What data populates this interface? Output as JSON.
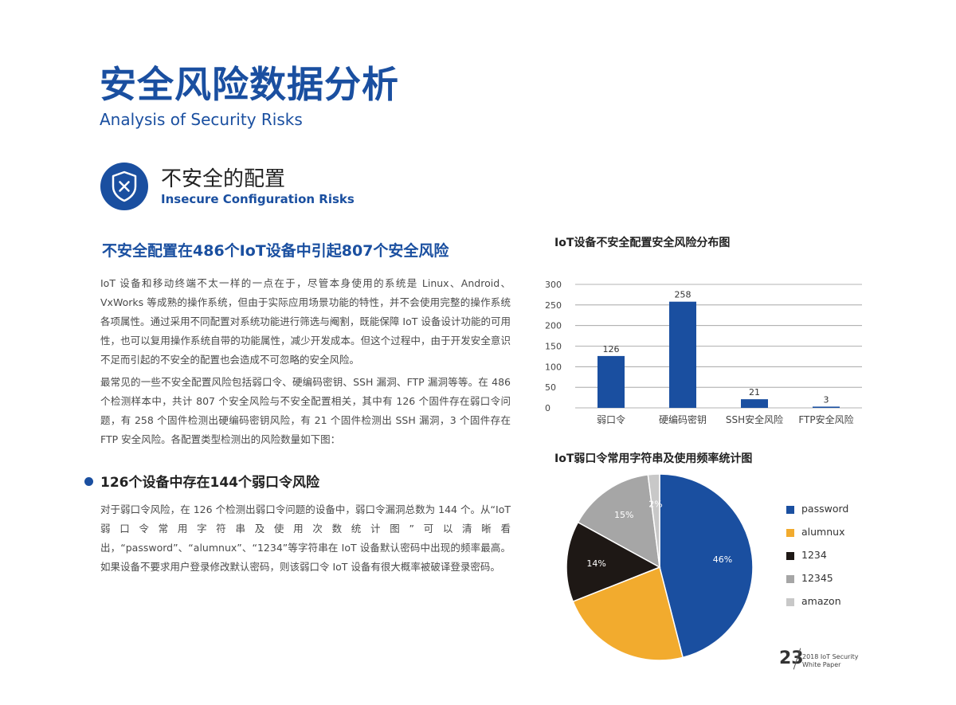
{
  "header": {
    "title_cn": "安全风险数据分析",
    "title_en": "Analysis of Security Risks"
  },
  "section": {
    "icon": "shield-x-icon",
    "title_cn": "不安全的配置",
    "title_en": "Insecure Configuration Risks"
  },
  "headline": "不安全配置在486个IoT设备中引起807个安全风险",
  "paragraphs": {
    "p1": "IoT 设备和移动终端不太一样的一点在于，尽管本身使用的系统是 Linux、Android、VxWorks 等成熟的操作系统，但由于实际应用场景功能的特性，并不会使用完整的操作系统各项属性。通过采用不同配置对系统功能进行筛选与阉割，既能保障 IoT 设备设计功能的可用性，也可以复用操作系统自带的功能属性，减少开发成本。但这个过程中，由于开发安全意识不足而引起的不安全的配置也会造成不可忽略的安全风险。",
    "p2": "最常见的一些不安全配置风险包括弱口令、硬编码密钥、SSH 漏洞、FTP 漏洞等等。在 486 个检测样本中，共计 807 个安全风险与不安全配置相关，其中有 126 个固件存在弱口令问题，有 258 个固件检测出硬编码密钥风险，有 21 个固件检测出 SSH 漏洞，3 个固件存在 FTP 安全风险。各配置类型检测出的风险数量如下图：",
    "p3": "对于弱口令风险，在 126 个检测出弱口令问题的设备中，弱口令漏洞总数为 144 个。从“IoT 弱口令常用字符串及使用次数统计图”可以清晰看出，“password”、“alumnux”、“1234”等字符串在 IoT 设备默认密码中出现的频率最高。如果设备不要求用户登录修改默认密码，则该弱口令 IoT 设备有很大概率被破译登录密码。"
  },
  "subhead": "126个设备中存在144个弱口令风险",
  "chart_data": [
    {
      "type": "bar",
      "title": "IoT设备不安全配置安全风险分布图",
      "categories": [
        "弱口令",
        "硬编码密钥",
        "SSH安全风险",
        "FTP安全风险"
      ],
      "values": [
        126,
        258,
        21,
        3
      ],
      "yticks": [
        0,
        50,
        100,
        150,
        200,
        250,
        300
      ],
      "ylim": [
        0,
        300
      ],
      "grid": true,
      "color": "#1a4fa0"
    },
    {
      "type": "pie",
      "title": "IoT弱口令常用字符串及使用频率统计图",
      "labels": [
        "password",
        "alumnux",
        "1234",
        "12345",
        "amazon"
      ],
      "values": [
        46,
        23,
        14,
        15,
        2
      ],
      "value_labels": [
        "46%",
        "",
        "14%",
        "15%",
        "2%"
      ],
      "colors": [
        "#1a4fa0",
        "#f2ab2e",
        "#1e1815",
        "#a6a6a6",
        "#c8c8c8"
      ],
      "legend": "right"
    }
  ],
  "footer": {
    "page_number": "23",
    "line1": "2018 IoT Security",
    "line2": "White Paper"
  }
}
